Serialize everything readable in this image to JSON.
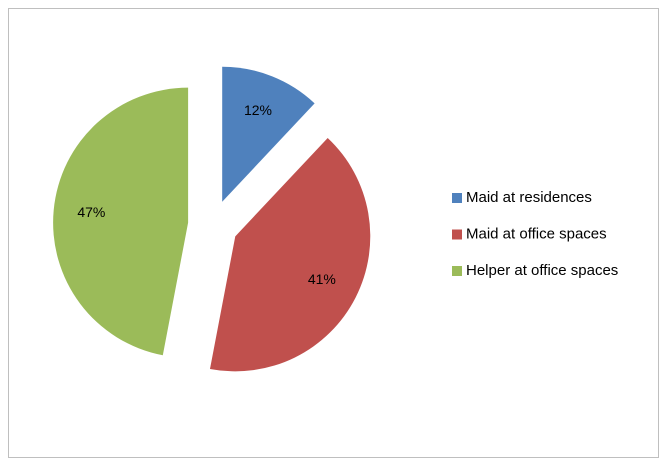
{
  "chart_data": {
    "type": "pie",
    "categories": [
      "Maid at residences",
      "Maid at office spaces",
      "Helper at office spaces"
    ],
    "values": [
      12,
      41,
      47
    ],
    "value_labels": [
      "12%",
      "41%",
      "47%"
    ],
    "colors": [
      "#4f81bd",
      "#c0504d",
      "#9bbb59"
    ],
    "legend": "right"
  }
}
